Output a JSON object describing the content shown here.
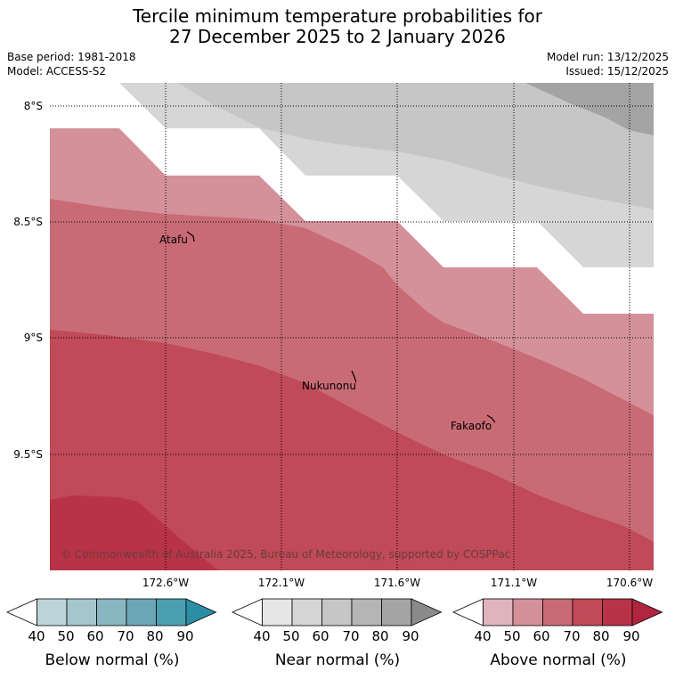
{
  "title": {
    "line1": "Tercile minimum temperature probabilities for",
    "line2": "27 December 2025 to 2 January 2026"
  },
  "meta": {
    "base_period": "Base period: 1981-2018",
    "model": "Model: ACCESS-S2",
    "model_run": "Model run: 13/12/2025",
    "issued": "Issued: 15/12/2025"
  },
  "map": {
    "lat_labels": [
      "8°S",
      "8.5°S",
      "9°S",
      "9.5°S"
    ],
    "lon_labels": [
      "172.6°W",
      "172.1°W",
      "171.6°W",
      "171.1°W",
      "170.6°W"
    ],
    "places": [
      "Atafu",
      "Nukunonu",
      "Fakaofo"
    ],
    "copyright": "© Commonwealth of Australia 2025, Bureau of Meteorology, supported by COSPPac"
  },
  "colorbars": [
    {
      "label": "Below normal (%)",
      "ticks": [
        "40",
        "50",
        "60",
        "70",
        "80",
        "90"
      ],
      "colors": [
        "#ffffff",
        "#bcd4da",
        "#a4c6cd",
        "#88b6c1",
        "#6aa7b4",
        "#4aa0b0",
        "#2c8ea5"
      ]
    },
    {
      "label": "Near normal (%)",
      "ticks": [
        "40",
        "50",
        "60",
        "70",
        "80",
        "90"
      ],
      "colors": [
        "#ffffff",
        "#e6e6e6",
        "#d6d6d6",
        "#c6c6c6",
        "#b5b5b5",
        "#a4a4a4",
        "#8a8a8a"
      ]
    },
    {
      "label": "Above normal (%)",
      "ticks": [
        "40",
        "50",
        "60",
        "70",
        "80",
        "90"
      ],
      "colors": [
        "#ffffff",
        "#e0b4bc",
        "#d4919a",
        "#c96b75",
        "#c04a57",
        "#b83346",
        "#b0263f"
      ]
    }
  ],
  "colors": {
    "above_50": "#d4919a",
    "above_60": "#c96b75",
    "above_70": "#c04a57",
    "above_80": "#b83346",
    "near_50": "#d6d6d6",
    "near_60": "#c6c6c6",
    "near_70": "#a4a4a4"
  }
}
